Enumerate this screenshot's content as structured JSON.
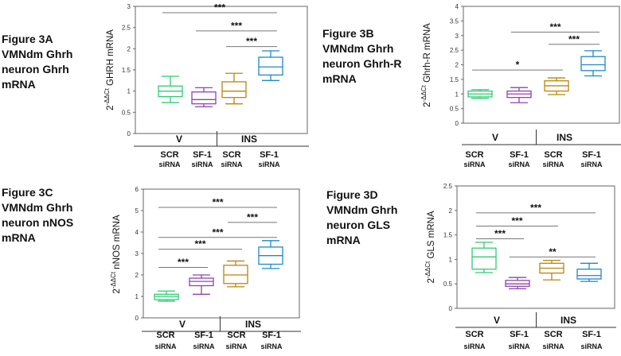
{
  "colors": {
    "V_SCR": "#2ecc71",
    "V_SF1": "#8e44ad",
    "INS_SCR": "#b8860b",
    "INS_SF1": "#1e88c8",
    "axis": "#666666",
    "sig": "#777777"
  },
  "chart_data": [
    {
      "id": "3A",
      "type": "boxplot",
      "title": "Figure 3A\nVMNdm Ghrh\nneuron Ghrh\nmRNA",
      "ylabel_prefix": "2",
      "ylabel_sup": "-ΔΔCt",
      "ylabel_main": " GHRH mRNA",
      "ylim": [
        0,
        3
      ],
      "yticks": [
        "0",
        "0.5",
        "1",
        "1.5",
        "2",
        "2.5",
        "3"
      ],
      "groups": [
        "V",
        "INS"
      ],
      "categories": [
        [
          "SCR",
          "siRNA"
        ],
        [
          "SF-1",
          "siRNA"
        ],
        [
          "SCR",
          "siRNA"
        ],
        [
          "SF-1",
          "siRNA"
        ]
      ],
      "boxes": [
        {
          "min": 0.73,
          "q1": 0.87,
          "median": 1.0,
          "q3": 1.12,
          "max": 1.35
        },
        {
          "min": 0.63,
          "q1": 0.7,
          "median": 0.8,
          "q3": 0.98,
          "max": 1.08
        },
        {
          "min": 0.7,
          "q1": 0.85,
          "median": 1.0,
          "q3": 1.22,
          "max": 1.42
        },
        {
          "min": 1.25,
          "q1": 1.38,
          "median": 1.57,
          "q3": 1.8,
          "max": 1.95
        }
      ],
      "sig": [
        {
          "from": 0,
          "to": 3,
          "y": 2.85,
          "label": "***"
        },
        {
          "from": 1,
          "to": 3,
          "y": 2.42,
          "label": "***"
        },
        {
          "from": 2,
          "to": 3,
          "y": 2.05,
          "label": "***"
        }
      ]
    },
    {
      "id": "3B",
      "type": "boxplot",
      "title": "Figure 3B\nVMNdm Ghrh\nneuron Ghrh-R\nmRNA",
      "ylabel_prefix": "2",
      "ylabel_sup": "-ΔΔCt",
      "ylabel_main": " Ghrh-R mRNA",
      "ylim": [
        0,
        4
      ],
      "yticks": [
        "0",
        "0.5",
        "1",
        "1.5",
        "2",
        "2.5",
        "3",
        "3.5",
        "4"
      ],
      "groups": [
        "V",
        "INS"
      ],
      "categories": [
        [
          "SCR",
          "siRNA"
        ],
        [
          "SF-1",
          "siRNA"
        ],
        [
          "SCR",
          "siRNA"
        ],
        [
          "SF-1",
          "siRNA"
        ]
      ],
      "boxes": [
        {
          "min": 0.85,
          "q1": 0.9,
          "median": 1.0,
          "q3": 1.1,
          "max": 1.15
        },
        {
          "min": 0.7,
          "q1": 0.88,
          "median": 1.0,
          "q3": 1.1,
          "max": 1.22
        },
        {
          "min": 0.98,
          "q1": 1.1,
          "median": 1.28,
          "q3": 1.45,
          "max": 1.55
        },
        {
          "min": 1.62,
          "q1": 1.8,
          "median": 2.0,
          "q3": 2.28,
          "max": 2.48
        }
      ],
      "sig": [
        {
          "from": 1,
          "to": 3,
          "y": 3.12,
          "label": "***"
        },
        {
          "from": 2,
          "to": 3,
          "y": 2.7,
          "label": "***"
        },
        {
          "from": 0,
          "to": 2,
          "y": 1.82,
          "label": "*"
        }
      ]
    },
    {
      "id": "3C",
      "type": "boxplot",
      "title": "Figure 3C\nVMNdm Ghrh\nneuron nNOS\nmRNA",
      "ylabel_prefix": "2",
      "ylabel_sup": "-ΔΔCt",
      "ylabel_main": " nNOS mRNA",
      "ylim": [
        0,
        6
      ],
      "yticks": [
        "0",
        "1",
        "2",
        "3",
        "4",
        "5",
        "6"
      ],
      "groups": [
        "V",
        "INS"
      ],
      "categories": [
        [
          "SCR",
          "siRNA"
        ],
        [
          "SF-1",
          "siRNA"
        ],
        [
          "SCR",
          "siRNA"
        ],
        [
          "SF-1",
          "siRNA"
        ]
      ],
      "boxes": [
        {
          "min": 0.78,
          "q1": 0.85,
          "median": 1.0,
          "q3": 1.1,
          "max": 1.25
        },
        {
          "min": 1.1,
          "q1": 1.5,
          "median": 1.7,
          "q3": 1.85,
          "max": 2.0
        },
        {
          "min": 1.45,
          "q1": 1.6,
          "median": 2.0,
          "q3": 2.45,
          "max": 2.65
        },
        {
          "min": 2.3,
          "q1": 2.5,
          "median": 2.9,
          "q3": 3.3,
          "max": 3.6
        }
      ],
      "sig": [
        {
          "from": 0,
          "to": 3,
          "y": 5.15,
          "label": "***"
        },
        {
          "from": 2,
          "to": 3,
          "y": 4.45,
          "label": "***"
        },
        {
          "from": 0,
          "to": 3,
          "y": 3.75,
          "label": "***"
        },
        {
          "from": 0,
          "to": 2,
          "y": 3.2,
          "label": "***"
        },
        {
          "from": 0,
          "to": 1,
          "y": 2.35,
          "label": "***"
        }
      ]
    },
    {
      "id": "3D",
      "type": "boxplot",
      "title": "Figure 3D\nVMNdm Ghrh\nneuron GLS\nmRNA",
      "ylabel_prefix": "2",
      "ylabel_sup": "-ΔΔCt",
      "ylabel_main": " GLS mRNA",
      "ylim": [
        0,
        2.5
      ],
      "yticks": [
        "0",
        "0.5",
        "1",
        "1.5",
        "2",
        "2.5"
      ],
      "groups": [
        "V",
        "INS"
      ],
      "categories": [
        [
          "SCR",
          "siRNA"
        ],
        [
          "SF-1",
          "siRNA"
        ],
        [
          "SCR",
          "siRNA"
        ],
        [
          "SF-1",
          "siRNA"
        ]
      ],
      "boxes": [
        {
          "min": 0.73,
          "q1": 0.8,
          "median": 1.05,
          "q3": 1.23,
          "max": 1.35
        },
        {
          "min": 0.4,
          "q1": 0.45,
          "median": 0.5,
          "q3": 0.57,
          "max": 0.63
        },
        {
          "min": 0.58,
          "q1": 0.72,
          "median": 0.82,
          "q3": 0.92,
          "max": 0.98
        },
        {
          "min": 0.55,
          "q1": 0.6,
          "median": 0.67,
          "q3": 0.8,
          "max": 0.92
        }
      ],
      "sig": [
        {
          "from": 0,
          "to": 3,
          "y": 1.95,
          "label": "***"
        },
        {
          "from": 0,
          "to": 2,
          "y": 1.68,
          "label": "***"
        },
        {
          "from": 0,
          "to": 1,
          "y": 1.42,
          "label": "***"
        },
        {
          "from": 1,
          "to": 3,
          "y": 1.05,
          "label": "**"
        }
      ]
    }
  ]
}
